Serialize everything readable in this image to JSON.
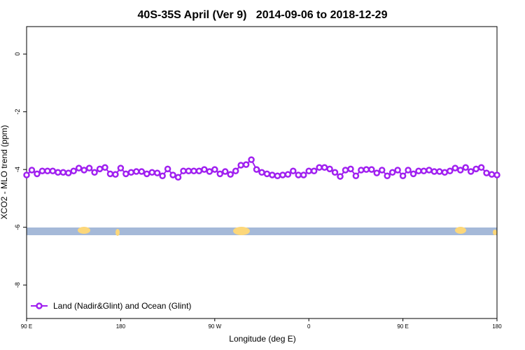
{
  "chart_data": {
    "type": "line",
    "title": "40S-35S April (Ver 9)   2014-09-06 to 2018-12-29",
    "xlabel": "Longitude (deg E)",
    "ylabel": "XCO2 - MLO trend (ppm)",
    "x": [
      90,
      95,
      100,
      105,
      110,
      115,
      120,
      125,
      130,
      135,
      140,
      145,
      150,
      155,
      160,
      165,
      170,
      175,
      180,
      185,
      190,
      195,
      200,
      205,
      210,
      215,
      220,
      225,
      230,
      235,
      240,
      245,
      250,
      255,
      260,
      265,
      270,
      275,
      280,
      285,
      290,
      295,
      300,
      305,
      310,
      315,
      320,
      325,
      330,
      335,
      340,
      345,
      350,
      355,
      360,
      365,
      370,
      375,
      380,
      385,
      390,
      395,
      400,
      405,
      410,
      415,
      420,
      425,
      430,
      435,
      440,
      445,
      450,
      455,
      460,
      465,
      470,
      475,
      480,
      485,
      490,
      495,
      500,
      505,
      510,
      515,
      520,
      525,
      530,
      535,
      540
    ],
    "series": [
      {
        "name": "Land (Nadir&Glint) and Ocean (Glint)",
        "color": "#a020f0",
        "values": [
          -4.19,
          -4.02,
          -4.15,
          -4.05,
          -4.05,
          -4.05,
          -4.1,
          -4.1,
          -4.12,
          -4.05,
          -3.95,
          -4.02,
          -3.95,
          -4.1,
          -3.98,
          -3.93,
          -4.15,
          -4.17,
          -3.95,
          -4.15,
          -4.1,
          -4.07,
          -4.07,
          -4.15,
          -4.1,
          -4.12,
          -4.22,
          -3.98,
          -4.19,
          -4.27,
          -4.05,
          -4.05,
          -4.05,
          -4.05,
          -4.0,
          -4.07,
          -4.0,
          -4.15,
          -4.07,
          -4.17,
          -4.05,
          -3.85,
          -3.83,
          -3.66,
          -4.0,
          -4.1,
          -4.15,
          -4.19,
          -4.22,
          -4.19,
          -4.17,
          -4.05,
          -4.19,
          -4.19,
          -4.05,
          -4.05,
          -3.93,
          -3.93,
          -3.98,
          -4.1,
          -4.24,
          -4.02,
          -3.98,
          -4.22,
          -4.02,
          -4.0,
          -4.0,
          -4.12,
          -4.02,
          -4.22,
          -4.1,
          -4.02,
          -4.22,
          -4.02,
          -4.15,
          -4.05,
          -4.05,
          -4.02,
          -4.07,
          -4.07,
          -4.1,
          -4.05,
          -3.95,
          -4.02,
          -3.93,
          -4.07,
          -3.98,
          -3.93,
          -4.12,
          -4.17,
          -4.19
        ]
      }
    ],
    "xlim": [
      90,
      540
    ],
    "xticks": [
      {
        "value": 90,
        "label": "90 E"
      },
      180,
      {
        "value": 270,
        "label": "90 W"
      },
      {
        "value": 360,
        "label": "0"
      },
      {
        "value": 450,
        "label": "90 E"
      },
      {
        "value": 540,
        "label": "180"
      }
    ],
    "ylim": [
      -9.16,
      0.95
    ],
    "yticks": [
      0,
      -2,
      -4,
      -6,
      -8
    ],
    "legend": "bottom-left"
  }
}
